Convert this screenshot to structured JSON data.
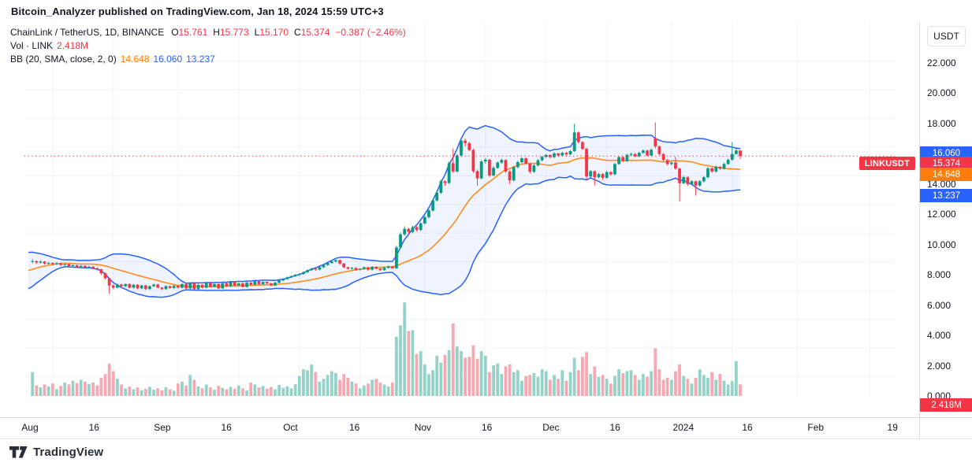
{
  "attribution": "Bitcoin_Analyzer published on TradingView.com, Jan 18, 2024 15:59 UTC+3",
  "legend": {
    "symbol": "ChainLink / TetherUS, 1D, BINANCE",
    "ohlc_items": [
      {
        "label": "O",
        "value": "15.761"
      },
      {
        "label": "H",
        "value": "15.773"
      },
      {
        "label": "L",
        "value": "15.170"
      },
      {
        "label": "C",
        "value": "15.374"
      },
      {
        "label": "",
        "value": "−0.387 (−2.46%)"
      }
    ],
    "volume_label": "Vol · LINK",
    "volume_value": "2.418M",
    "bb_label": "BB (20, SMA, close, 2, 0)",
    "bb_basis": "14.648",
    "bb_upper": "16.060",
    "bb_lower": "13.237"
  },
  "price_axis": {
    "currency": "USDT",
    "badges": [
      {
        "text": "16.060",
        "price": 16.06,
        "color": "#2962ff"
      },
      {
        "text": "15.374",
        "price": 15.374,
        "color": "#f23645"
      },
      {
        "text": "14.648",
        "price": 14.648,
        "color": "#ff7d0a"
      },
      {
        "text": "13.237",
        "price": 13.237,
        "color": "#2962ff"
      }
    ],
    "volume_badge": {
      "text": "2.418M",
      "color": "#f23645"
    }
  },
  "time_axis": {
    "labels": [
      {
        "label": "Aug",
        "day": 0
      },
      {
        "label": "16",
        "day": 15
      },
      {
        "label": "Sep",
        "day": 31
      },
      {
        "label": "16",
        "day": 46
      },
      {
        "label": "Oct",
        "day": 61
      },
      {
        "label": "16",
        "day": 76
      },
      {
        "label": "Nov",
        "day": 92
      },
      {
        "label": "16",
        "day": 107
      },
      {
        "label": "Dec",
        "day": 122
      },
      {
        "label": "16",
        "day": 137
      },
      {
        "label": "2024",
        "day": 153
      },
      {
        "label": "16",
        "day": 168
      },
      {
        "label": "Feb",
        "day": 184
      },
      {
        "label": "19",
        "day": 202
      }
    ]
  },
  "price_line_label": "LINKUSDT",
  "footer": {
    "brand": "TradingView"
  },
  "colors": {
    "up": "#089981",
    "down": "#f23645",
    "vol_up": "#95d3c9",
    "vol_down": "#f8a8b0",
    "bb_band": "#2962ff",
    "bb_fill": "rgba(41,98,255,0.07)",
    "bb_basis": "#ff9029",
    "grid": "#f0f3fa",
    "last_price_line": "#f23645"
  },
  "chart_data": {
    "type": "candlestick",
    "symbol": "LINKUSDT",
    "description": "ChainLink / TetherUS",
    "exchange": "BINANCE",
    "interval": "1D",
    "last": {
      "open": 15.761,
      "high": 15.773,
      "low": 15.17,
      "close": 15.374,
      "change": -0.387,
      "change_pct": -2.46,
      "volume_m": 2.418
    },
    "indicator_bb": {
      "length": 20,
      "ma_type": "SMA",
      "source": "close",
      "stdev": 2,
      "offset": 0,
      "basis": 14.648,
      "upper": 16.06,
      "lower": 13.237
    },
    "price_axis": {
      "min": 0,
      "max": 22,
      "tick_step": 2
    },
    "first_visible_date": "2023-07-27",
    "last_date": "2024-01-18",
    "preroll": 20,
    "candles": [
      [
        6.2,
        6.38,
        6.12,
        6.3
      ],
      [
        6.3,
        6.36,
        6.1,
        6.2
      ],
      [
        6.2,
        6.5,
        6.16,
        6.42
      ],
      [
        6.42,
        6.62,
        6.36,
        6.55
      ],
      [
        6.55,
        6.8,
        6.5,
        6.72
      ],
      [
        6.72,
        6.98,
        6.66,
        6.9
      ],
      [
        6.9,
        7.2,
        6.84,
        7.12
      ],
      [
        7.12,
        7.38,
        7.05,
        7.3
      ],
      [
        7.3,
        7.6,
        7.24,
        7.52
      ],
      [
        7.52,
        7.85,
        7.46,
        7.78
      ],
      [
        7.78,
        8.08,
        7.7,
        8.0
      ],
      [
        8.0,
        8.2,
        7.9,
        8.12
      ],
      [
        8.12,
        8.18,
        7.82,
        7.92
      ],
      [
        7.92,
        7.98,
        7.6,
        7.7
      ],
      [
        7.7,
        7.8,
        7.52,
        7.62
      ],
      [
        7.62,
        7.88,
        7.56,
        7.8
      ],
      [
        7.8,
        8.0,
        7.72,
        7.92
      ],
      [
        7.92,
        8.1,
        7.84,
        8.02
      ],
      [
        8.02,
        8.08,
        7.8,
        7.9
      ],
      [
        7.9,
        8.08,
        7.82,
        8.0
      ],
      [
        8.0,
        8.18,
        7.9,
        8.05
      ],
      [
        8.05,
        8.1,
        7.85,
        7.95
      ],
      [
        7.95,
        8.1,
        7.88,
        8.02
      ],
      [
        8.02,
        8.06,
        7.8,
        7.88
      ],
      [
        7.88,
        8.0,
        7.8,
        7.92
      ],
      [
        7.92,
        7.96,
        7.76,
        7.85
      ],
      [
        7.85,
        7.98,
        7.78,
        7.9
      ],
      [
        7.9,
        7.94,
        7.7,
        7.78
      ],
      [
        7.78,
        7.9,
        7.72,
        7.83
      ],
      [
        7.83,
        7.87,
        7.62,
        7.7
      ],
      [
        7.7,
        7.82,
        7.64,
        7.76
      ],
      [
        7.76,
        7.8,
        7.58,
        7.65
      ],
      [
        7.65,
        7.78,
        7.6,
        7.72
      ],
      [
        7.72,
        7.76,
        7.52,
        7.6
      ],
      [
        7.6,
        7.72,
        7.54,
        7.66
      ],
      [
        7.66,
        7.7,
        7.46,
        7.55
      ],
      [
        7.55,
        7.62,
        7.4,
        7.48
      ],
      [
        7.48,
        7.52,
        7.1,
        7.2
      ],
      [
        7.2,
        7.26,
        6.76,
        6.85
      ],
      [
        6.85,
        6.9,
        5.78,
        6.35
      ],
      [
        6.35,
        6.44,
        6.08,
        6.2
      ],
      [
        6.2,
        6.5,
        6.14,
        6.42
      ],
      [
        6.42,
        6.48,
        6.22,
        6.3
      ],
      [
        6.3,
        6.5,
        6.24,
        6.45
      ],
      [
        6.45,
        6.5,
        6.14,
        6.2
      ],
      [
        6.2,
        6.46,
        6.15,
        6.4
      ],
      [
        6.4,
        6.44,
        6.08,
        6.15
      ],
      [
        6.15,
        6.4,
        6.1,
        6.35
      ],
      [
        6.35,
        6.4,
        6.04,
        6.1
      ],
      [
        6.1,
        6.36,
        6.05,
        6.3
      ],
      [
        6.3,
        6.48,
        6.24,
        6.42
      ],
      [
        6.42,
        6.46,
        6.14,
        6.2
      ],
      [
        6.2,
        6.26,
        6.04,
        6.1
      ],
      [
        6.1,
        6.36,
        6.05,
        6.3
      ],
      [
        6.3,
        6.34,
        6.12,
        6.18
      ],
      [
        6.18,
        6.38,
        6.12,
        6.32
      ],
      [
        6.32,
        6.36,
        6.14,
        6.2
      ],
      [
        6.2,
        6.5,
        6.15,
        6.45
      ],
      [
        6.45,
        6.49,
        6.1,
        6.15
      ],
      [
        6.15,
        6.55,
        6.1,
        6.5
      ],
      [
        6.5,
        6.54,
        6.05,
        6.1
      ],
      [
        6.1,
        6.46,
        6.05,
        6.4
      ],
      [
        6.4,
        6.44,
        6.15,
        6.2
      ],
      [
        6.2,
        6.6,
        6.15,
        6.55
      ],
      [
        6.55,
        6.59,
        6.2,
        6.25
      ],
      [
        6.25,
        6.5,
        6.2,
        6.45
      ],
      [
        6.45,
        6.49,
        6.1,
        6.15
      ],
      [
        6.15,
        6.55,
        6.1,
        6.5
      ],
      [
        6.5,
        6.54,
        6.25,
        6.3
      ],
      [
        6.3,
        6.65,
        6.25,
        6.6
      ],
      [
        6.6,
        6.64,
        6.3,
        6.35
      ],
      [
        6.35,
        6.55,
        6.3,
        6.5
      ],
      [
        6.5,
        6.54,
        6.2,
        6.25
      ],
      [
        6.25,
        6.6,
        6.2,
        6.55
      ],
      [
        6.55,
        6.59,
        6.35,
        6.4
      ],
      [
        6.4,
        6.7,
        6.35,
        6.65
      ],
      [
        6.65,
        6.69,
        6.4,
        6.45
      ],
      [
        6.45,
        6.65,
        6.4,
        6.6
      ],
      [
        6.6,
        6.64,
        6.45,
        6.5
      ],
      [
        6.5,
        6.54,
        6.3,
        6.35
      ],
      [
        6.35,
        6.6,
        6.3,
        6.55
      ],
      [
        6.55,
        6.75,
        6.5,
        6.7
      ],
      [
        6.7,
        6.85,
        6.65,
        6.8
      ],
      [
        6.8,
        6.97,
        6.75,
        6.92
      ],
      [
        6.92,
        7.05,
        6.86,
        7.0
      ],
      [
        7.0,
        7.15,
        6.94,
        7.1
      ],
      [
        7.1,
        7.21,
        7.02,
        7.15
      ],
      [
        7.15,
        7.34,
        7.1,
        7.28
      ],
      [
        7.28,
        7.48,
        7.22,
        7.42
      ],
      [
        7.42,
        7.58,
        7.36,
        7.52
      ],
      [
        7.52,
        7.56,
        7.38,
        7.46
      ],
      [
        7.46,
        7.68,
        7.4,
        7.62
      ],
      [
        7.62,
        7.84,
        7.56,
        7.78
      ],
      [
        7.78,
        7.98,
        7.72,
        7.92
      ],
      [
        7.92,
        8.08,
        7.86,
        8.02
      ],
      [
        8.02,
        8.18,
        7.96,
        8.12
      ],
      [
        8.12,
        8.16,
        7.8,
        7.88
      ],
      [
        7.88,
        7.92,
        7.54,
        7.62
      ],
      [
        7.62,
        7.66,
        7.44,
        7.52
      ],
      [
        7.52,
        7.64,
        7.46,
        7.58
      ],
      [
        7.58,
        7.62,
        7.38,
        7.46
      ],
      [
        7.46,
        7.56,
        7.4,
        7.5
      ],
      [
        7.5,
        7.68,
        7.44,
        7.62
      ],
      [
        7.62,
        7.66,
        7.38,
        7.45
      ],
      [
        7.45,
        7.7,
        7.4,
        7.65
      ],
      [
        7.65,
        7.69,
        7.46,
        7.52
      ],
      [
        7.52,
        7.56,
        7.36,
        7.42
      ],
      [
        7.42,
        7.64,
        7.38,
        7.58
      ],
      [
        7.58,
        7.74,
        7.52,
        7.68
      ],
      [
        7.68,
        7.72,
        7.5,
        7.55
      ],
      [
        7.55,
        9.12,
        7.52,
        9.0
      ],
      [
        9.0,
        10.05,
        8.9,
        9.92
      ],
      [
        9.92,
        10.48,
        9.8,
        10.3
      ],
      [
        10.3,
        10.38,
        9.95,
        10.08
      ],
      [
        10.08,
        10.52,
        10.0,
        10.42
      ],
      [
        10.42,
        10.48,
        10.1,
        10.22
      ],
      [
        10.22,
        10.78,
        10.15,
        10.68
      ],
      [
        10.68,
        11.22,
        10.6,
        11.12
      ],
      [
        11.12,
        11.68,
        11.02,
        11.58
      ],
      [
        11.58,
        12.4,
        11.5,
        12.28
      ],
      [
        12.28,
        12.95,
        12.2,
        12.82
      ],
      [
        12.82,
        13.72,
        12.74,
        13.62
      ],
      [
        13.62,
        13.68,
        13.3,
        13.5
      ],
      [
        13.5,
        14.98,
        13.42,
        14.88
      ],
      [
        14.88,
        15.9,
        14.2,
        14.3
      ],
      [
        14.3,
        15.52,
        14.22,
        15.42
      ],
      [
        15.42,
        16.65,
        15.3,
        16.45
      ],
      [
        16.45,
        16.6,
        16.05,
        16.28
      ],
      [
        16.28,
        16.36,
        15.7,
        15.8
      ],
      [
        15.8,
        15.9,
        14.2,
        14.32
      ],
      [
        14.32,
        14.44,
        13.3,
        13.82
      ],
      [
        13.82,
        15.1,
        13.75,
        15.0
      ],
      [
        15.0,
        15.24,
        14.85,
        15.12
      ],
      [
        15.12,
        15.18,
        13.92,
        14.02
      ],
      [
        14.02,
        14.68,
        13.96,
        14.55
      ],
      [
        14.55,
        15.0,
        14.48,
        14.92
      ],
      [
        14.92,
        15.2,
        14.84,
        15.1
      ],
      [
        15.1,
        15.16,
        14.2,
        14.3
      ],
      [
        14.3,
        14.38,
        13.42,
        13.68
      ],
      [
        13.68,
        14.68,
        13.6,
        14.6
      ],
      [
        14.6,
        15.05,
        14.52,
        14.95
      ],
      [
        14.95,
        15.3,
        14.88,
        15.22
      ],
      [
        15.22,
        15.28,
        14.76,
        14.85
      ],
      [
        14.85,
        14.92,
        14.16,
        14.28
      ],
      [
        14.28,
        14.8,
        14.2,
        14.72
      ],
      [
        14.72,
        15.16,
        14.66,
        15.08
      ],
      [
        15.08,
        15.4,
        15.0,
        15.32
      ],
      [
        15.32,
        15.53,
        15.24,
        15.45
      ],
      [
        15.45,
        15.5,
        15.2,
        15.3
      ],
      [
        15.3,
        15.64,
        15.24,
        15.56
      ],
      [
        15.56,
        15.6,
        15.32,
        15.42
      ],
      [
        15.42,
        15.68,
        15.36,
        15.6
      ],
      [
        15.6,
        15.66,
        15.4,
        15.5
      ],
      [
        15.5,
        15.8,
        15.44,
        15.72
      ],
      [
        15.72,
        17.62,
        15.65,
        17.02
      ],
      [
        17.02,
        17.1,
        16.25,
        16.35
      ],
      [
        16.35,
        16.42,
        15.8,
        15.88
      ],
      [
        15.88,
        15.95,
        13.7,
        13.95
      ],
      [
        13.95,
        14.4,
        13.88,
        14.32
      ],
      [
        14.32,
        14.38,
        13.32,
        13.9
      ],
      [
        13.9,
        14.2,
        13.82,
        14.12
      ],
      [
        14.12,
        14.18,
        13.7,
        13.86
      ],
      [
        13.86,
        14.34,
        13.8,
        14.26
      ],
      [
        14.26,
        14.32,
        14.0,
        14.1
      ],
      [
        14.1,
        14.9,
        14.04,
        14.82
      ],
      [
        14.82,
        15.38,
        14.76,
        15.3
      ],
      [
        15.3,
        15.36,
        14.94,
        15.02
      ],
      [
        15.02,
        15.54,
        14.96,
        15.46
      ],
      [
        15.46,
        15.6,
        15.36,
        15.52
      ],
      [
        15.52,
        15.58,
        15.28,
        15.36
      ],
      [
        15.36,
        15.68,
        15.3,
        15.6
      ],
      [
        15.6,
        15.84,
        15.52,
        15.76
      ],
      [
        15.76,
        15.82,
        15.34,
        15.42
      ],
      [
        15.42,
        15.9,
        15.36,
        15.82
      ],
      [
        16.62,
        17.72,
        15.9,
        16.05
      ],
      [
        16.05,
        16.12,
        15.42,
        15.52
      ],
      [
        15.52,
        15.58,
        15.0,
        15.1
      ],
      [
        15.1,
        15.18,
        14.72,
        14.82
      ],
      [
        14.82,
        15.0,
        14.74,
        14.92
      ],
      [
        14.92,
        15.32,
        14.42,
        14.5
      ],
      [
        14.5,
        14.56,
        12.22,
        13.48
      ],
      [
        13.48,
        14.0,
        13.4,
        13.9
      ],
      [
        13.9,
        13.96,
        13.3,
        13.42
      ],
      [
        13.42,
        13.7,
        13.34,
        13.62
      ],
      [
        13.62,
        13.66,
        12.62,
        13.32
      ],
      [
        13.32,
        13.7,
        13.24,
        13.62
      ],
      [
        13.62,
        13.98,
        13.54,
        13.9
      ],
      [
        13.9,
        14.6,
        13.82,
        14.52
      ],
      [
        14.52,
        14.58,
        14.2,
        14.3
      ],
      [
        14.3,
        14.7,
        14.22,
        14.62
      ],
      [
        14.62,
        14.68,
        14.4,
        14.5
      ],
      [
        14.5,
        14.9,
        14.44,
        14.82
      ],
      [
        14.82,
        15.2,
        14.76,
        15.12
      ],
      [
        15.12,
        16.35,
        15.05,
        15.52
      ],
      [
        15.52,
        16.0,
        15.46,
        15.76
      ],
      [
        15.761,
        15.773,
        15.17,
        15.374
      ]
    ],
    "volumes_m": [
      5.0,
      2.2,
      1.8,
      2.4,
      2.0,
      2.6,
      1.4,
      2.1,
      2.8,
      2.4,
      3.2,
      2.7,
      3.4,
      3.0,
      2.5,
      2.8,
      2.2,
      3.8,
      4.6,
      6.8,
      5.2,
      3.6,
      2.4,
      1.6,
      2.0,
      1.4,
      1.8,
      1.2,
      1.5,
      1.9,
      1.3,
      1.6,
      1.2,
      1.8,
      1.4,
      1.1,
      2.6,
      3.0,
      2.2,
      4.4,
      3.4,
      2.0,
      1.6,
      2.4,
      1.8,
      1.3,
      2.1,
      1.7,
      1.4,
      1.9,
      1.5,
      2.2,
      1.6,
      1.2,
      2.8,
      2.4,
      1.8,
      2.1,
      1.5,
      1.9,
      1.4,
      2.3,
      1.7,
      2.0,
      1.6,
      2.5,
      4.2,
      5.6,
      5.4,
      6.6,
      5.0,
      3.0,
      3.6,
      4.4,
      5.2,
      4.8,
      3.4,
      4.6,
      3.8,
      3.0,
      2.6,
      1.6,
      2.2,
      2.6,
      3.4,
      3.6,
      2.8,
      2.4,
      2.0,
      2.8,
      12.4,
      14.8,
      19.6,
      13.6,
      13.8,
      8.8,
      9.4,
      6.6,
      4.6,
      5.4,
      8.4,
      7.0,
      8.6,
      9.6,
      15.2,
      10.4,
      9.4,
      8.0,
      8.2,
      10.6,
      7.8,
      9.4,
      8.4,
      5.0,
      6.4,
      6.8,
      4.6,
      6.2,
      6.6,
      5.0,
      5.4,
      3.2,
      4.2,
      4.4,
      4.8,
      4.0,
      5.6,
      5.2,
      3.4,
      4.4,
      3.6,
      5.4,
      3.2,
      5.0,
      8.0,
      5.4,
      8.2,
      9.2,
      4.6,
      6.2,
      4.0,
      4.4,
      3.6,
      2.6,
      4.2,
      5.6,
      4.8,
      5.2,
      5.4,
      4.4,
      3.4,
      4.6,
      4.0,
      5.2,
      10.0,
      5.6,
      3.4,
      3.8,
      3.4,
      5.2,
      6.6,
      4.2,
      3.6,
      2.6,
      3.8,
      5.6,
      4.4,
      3.8,
      5.0,
      3.4,
      4.6,
      3.2,
      2.4,
      3.1,
      7.3,
      2.418
    ]
  }
}
